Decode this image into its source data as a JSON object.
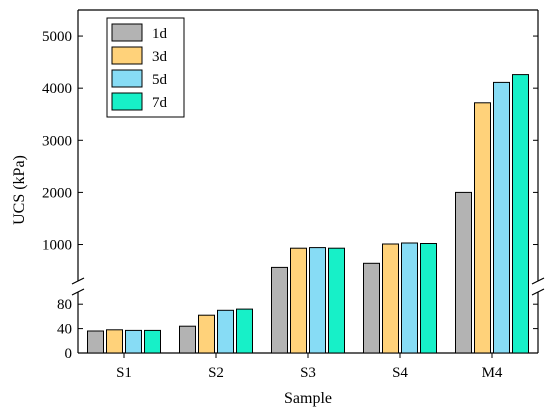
{
  "chart_data": {
    "type": "bar",
    "xlabel": "Sample",
    "ylabel": "UCS (kPa)",
    "categories": [
      "S1",
      "S2",
      "S3",
      "S4",
      "M4"
    ],
    "series": [
      {
        "name": "1d",
        "color": "#b3b3b3",
        "values": [
          36,
          44,
          560,
          640,
          2000
        ]
      },
      {
        "name": "3d",
        "color": "#ffd27a",
        "values": [
          38,
          62,
          930,
          1010,
          3720
        ]
      },
      {
        "name": "5d",
        "color": "#87dcf5",
        "values": [
          37,
          70,
          940,
          1030,
          4110
        ]
      },
      {
        "name": "7d",
        "color": "#17f0c8",
        "values": [
          37,
          72,
          930,
          1020,
          4260
        ]
      }
    ],
    "axis_break": true,
    "y_lower": {
      "range": [
        0,
        100
      ],
      "ticks": [
        "0",
        "40",
        "80"
      ]
    },
    "y_upper": {
      "range": [
        300,
        5500
      ],
      "ticks": [
        "1000",
        "2000",
        "3000",
        "4000",
        "5000"
      ]
    },
    "legend_position": "top-left",
    "grid": false
  }
}
